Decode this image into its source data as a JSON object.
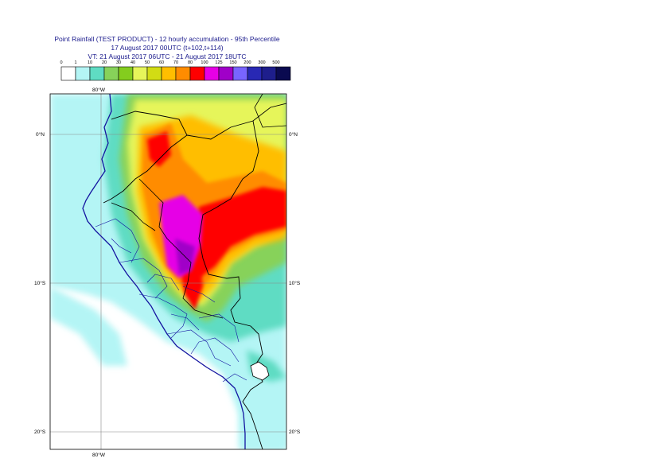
{
  "title": {
    "line1": "Point Rainfall (TEST PRODUCT) - 12 hourly accumulation - 95th Percentile",
    "line2": "17 August 2017 00UTC (t+102,t+114)",
    "line3": "VT: 21 August 2017 06UTC - 21 August 2017 18UTC"
  },
  "legend": {
    "thresholds": [
      "0",
      "1",
      "10",
      "20",
      "30",
      "40",
      "50",
      "60",
      "70",
      "80",
      "100",
      "125",
      "150",
      "200",
      "300",
      "500"
    ],
    "colors": [
      "#ffffff",
      "#b4f5f5",
      "#5fdcc3",
      "#87d25a",
      "#84cd1e",
      "#e6f55a",
      "#d2dc14",
      "#ffbe00",
      "#ff8c00",
      "#ff0000",
      "#e600e6",
      "#a000c8",
      "#7864ff",
      "#2828b4",
      "#1e1e8c",
      "#0a0a50"
    ]
  },
  "map": {
    "lat_labels": [
      "0°N",
      "10°S",
      "20°S"
    ],
    "lon_labels": [
      "80°W",
      "80°W"
    ]
  }
}
